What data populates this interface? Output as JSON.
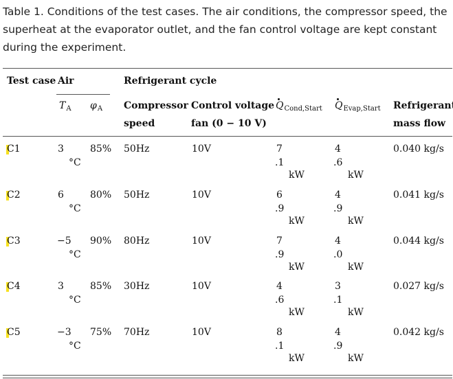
{
  "caption": {
    "label": "Table 1.",
    "text": "Conditions of the test cases. The air conditions, the compressor speed, the superheat at the evaporator outlet, and the fan control voltage are kept constant during the experiment."
  },
  "headers": {
    "test_case": "Test case",
    "air": "Air",
    "refrigerant_cycle": "Refrigerant cycle",
    "ta_sym": "T",
    "ta_sub": "A",
    "phi_sym": "φ",
    "phi_sub": "A",
    "compressor_1": "Compressor",
    "compressor_2": "speed",
    "control_1": "Control voltage",
    "control_2": "fan (0 − 10 V)",
    "qcond_sym": "Q",
    "qcond_sub": "Cond,Start",
    "qevap_sym": "Q",
    "qevap_sub": "Evap,Start",
    "mass_1": "Refrigerant",
    "mass_2": "mass flow"
  },
  "rows": [
    {
      "case": "C1",
      "ta_val": "3",
      "ta_unit": "°C",
      "phi": "85%",
      "comp": "50Hz",
      "volt": "10V",
      "qc_a": "7",
      "qc_b": ".1",
      "qc_u": "kW",
      "qe_a": "4",
      "qe_b": ".6",
      "qe_u": "kW",
      "mass": "0.040 kg/s"
    },
    {
      "case": "C2",
      "ta_val": "6",
      "ta_unit": "°C",
      "phi": "80%",
      "comp": "50Hz",
      "volt": "10V",
      "qc_a": "6",
      "qc_b": ".9",
      "qc_u": "kW",
      "qe_a": "4",
      "qe_b": ".9",
      "qe_u": "kW",
      "mass": "0.041 kg/s"
    },
    {
      "case": "C3",
      "ta_val": "−5",
      "ta_unit": "°C",
      "phi": "90%",
      "comp": "80Hz",
      "volt": "10V",
      "qc_a": "7",
      "qc_b": ".9",
      "qc_u": "kW",
      "qe_a": "4",
      "qe_b": ".0",
      "qe_u": "kW",
      "mass": "0.044 kg/s"
    },
    {
      "case": "C4",
      "ta_val": "3",
      "ta_unit": "°C",
      "phi": "85%",
      "comp": "30Hz",
      "volt": "10V",
      "qc_a": "4",
      "qc_b": ".6",
      "qc_u": "kW",
      "qe_a": "3",
      "qe_b": ".1",
      "qe_u": "kW",
      "mass": "0.027 kg/s"
    },
    {
      "case": "C5",
      "ta_val": "−3",
      "ta_unit": "°C",
      "phi": "75%",
      "comp": "70Hz",
      "volt": "10V",
      "qc_a": "8",
      "qc_b": ".1",
      "qc_u": "kW",
      "qe_a": "4",
      "qe_b": ".9",
      "qe_u": "kW",
      "mass": "0.042 kg/s"
    }
  ],
  "colors": {
    "highlight": "#f7e11f",
    "rule": "#555555"
  }
}
